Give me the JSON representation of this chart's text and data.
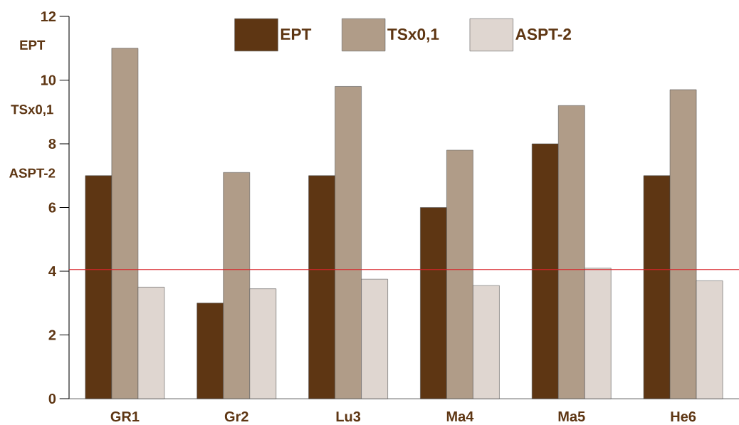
{
  "chart_data": {
    "type": "bar",
    "categories": [
      "GR1",
      "Gr2",
      "Lu3",
      "Ma4",
      "Ma5",
      "He6"
    ],
    "series": [
      {
        "name": "EPT",
        "color": "#5e3613",
        "values": [
          7,
          3,
          7,
          6,
          8,
          7
        ]
      },
      {
        "name": "TSx0,1",
        "color": "#b09c88",
        "values": [
          11,
          7.1,
          9.8,
          7.8,
          9.2,
          9.7
        ]
      },
      {
        "name": "ASPT-2",
        "color": "#dfd6d0",
        "values": [
          3.5,
          3.45,
          3.75,
          3.55,
          4.1,
          3.7
        ]
      }
    ],
    "annotations": [
      "EPT",
      "TSx0,1",
      "ASPT-2"
    ],
    "ylim": [
      0,
      12
    ],
    "yticks": [
      0,
      2,
      4,
      6,
      8,
      10,
      12
    ],
    "ref_lines": [
      {
        "axis": "y",
        "value": 4.05,
        "color": "#d9252a"
      }
    ],
    "legend": "top",
    "grid": false
  }
}
